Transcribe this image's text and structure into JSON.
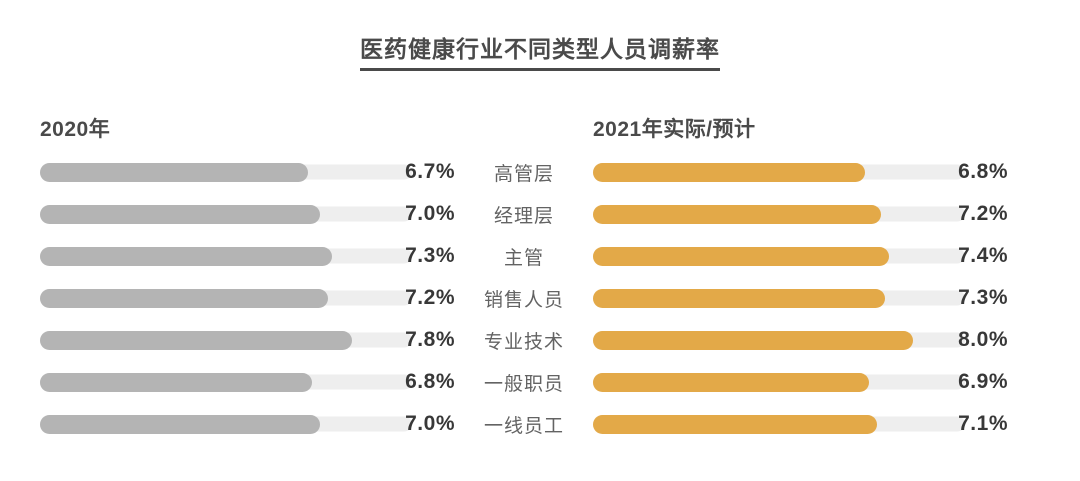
{
  "title": {
    "text": "医药健康行业不同类型人员调薪率"
  },
  "colors": {
    "bar_2020": "#b4b4b4",
    "bar_2021": "#e3a948",
    "track": "#eeeeee",
    "title_text": "#4a4a4a",
    "value_text": "#383838",
    "category_text": "#636363"
  },
  "chart_data": {
    "type": "bar",
    "orientation": "horizontal",
    "title": "医药健康行业不同类型人员调薪率",
    "categories": [
      "高管层",
      "经理层",
      "主管",
      "销售人员",
      "专业技术",
      "一般职员",
      "一线员工"
    ],
    "series": [
      {
        "name": "2020年",
        "values": [
          6.7,
          7.0,
          7.3,
          7.2,
          7.8,
          6.8,
          7.0
        ],
        "labels": [
          "6.7%",
          "7.0%",
          "7.3%",
          "7.2%",
          "7.8%",
          "6.8%",
          "7.0%"
        ],
        "color": "#b4b4b4"
      },
      {
        "name": "2021年实际/预计",
        "values": [
          6.8,
          7.2,
          7.4,
          7.3,
          8.0,
          6.9,
          7.1
        ],
        "labels": [
          "6.8%",
          "7.2%",
          "7.4%",
          "7.3%",
          "8.0%",
          "6.9%",
          "7.1%"
        ],
        "color": "#e3a948"
      }
    ],
    "value_axis_min": 0,
    "value_axis_max": 9.3,
    "value_suffix": "%",
    "grid": false,
    "legend_position": "column-headers",
    "category_labels_position": "center-between-series"
  }
}
